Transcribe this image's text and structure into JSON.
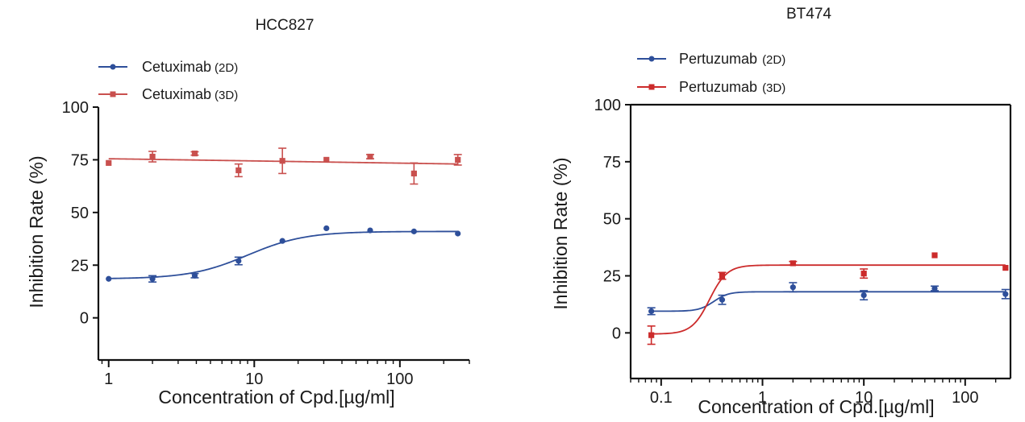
{
  "chart_data": [
    {
      "type": "scatter",
      "title": "HCC827",
      "xlabel": "Concentration of Cpd.[µg/ml]",
      "ylabel": "Inhibition Rate (%)",
      "x_scale": "log",
      "xlim": [
        0.85,
        300
      ],
      "ylim": [
        -20,
        100
      ],
      "x_ticks": [
        1,
        10,
        100
      ],
      "x_tick_labels": [
        "1",
        "10",
        "100"
      ],
      "y_ticks": [
        0,
        25,
        50,
        75,
        100
      ],
      "y_tick_labels": [
        "0",
        "25",
        "50",
        "75",
        "100"
      ],
      "grid": false,
      "legend_position": "top-left, above plot",
      "series": [
        {
          "name": "Cetuximab",
          "name_suffix": "(2D)",
          "color": "#2e4f9a",
          "marker": "circle",
          "x": [
            1,
            2,
            3.9,
            7.8,
            15.6,
            31.3,
            62.5,
            125,
            250
          ],
          "y": [
            18.5,
            18.5,
            20,
            27,
            36.5,
            42.5,
            41.5,
            41,
            40
          ],
          "err": [
            0.5,
            1.5,
            1,
            1.8,
            0.5,
            0.5,
            0.5,
            0.5,
            0.5
          ],
          "fit": {
            "bottom": 18.5,
            "top": 41,
            "ec50": 9,
            "hill": 2.2
          }
        },
        {
          "name": "Cetuximab",
          "name_suffix": "(3D)",
          "color": "#c9504e",
          "marker": "square",
          "x": [
            1,
            2,
            3.9,
            7.8,
            15.6,
            31.3,
            62.5,
            125,
            250
          ],
          "y": [
            73.5,
            76.5,
            78,
            70,
            74.5,
            75,
            76.5,
            68.5,
            75
          ],
          "err": [
            0.5,
            2.5,
            0.8,
            3,
            6,
            0.5,
            1,
            5,
            2.5
          ],
          "fit": {
            "linear": [
              75.5,
              73
            ]
          }
        }
      ]
    },
    {
      "type": "scatter",
      "title": "BT474",
      "xlabel": "Concentration of Cpd.[µg/ml]",
      "ylabel": "Inhibition Rate (%)",
      "x_scale": "log",
      "xlim": [
        0.05,
        280
      ],
      "ylim": [
        -20,
        100
      ],
      "x_ticks": [
        0.1,
        1,
        10,
        100
      ],
      "x_tick_labels": [
        "0.1",
        "1",
        "10",
        "100"
      ],
      "y_ticks": [
        0,
        25,
        50,
        75,
        100
      ],
      "y_tick_labels": [
        "0",
        "25",
        "50",
        "75",
        "100"
      ],
      "grid": false,
      "legend_position": "top-left, above plot",
      "series": [
        {
          "name": "Pertuzumab",
          "name_suffix": "(2D)",
          "color": "#2e4f9a",
          "marker": "circle",
          "x": [
            0.08,
            0.4,
            2,
            10,
            50,
            250
          ],
          "y": [
            9.5,
            14.5,
            20,
            16.5,
            19.5,
            17
          ],
          "err": [
            1.5,
            2,
            2,
            2,
            1,
            2
          ],
          "fit": {
            "bottom": 9.5,
            "top": 18,
            "ec50": 0.33,
            "hill": 6
          }
        },
        {
          "name": "Pertuzumab",
          "name_suffix": "(3D)",
          "color": "#cc2b2b",
          "marker": "square",
          "x": [
            0.08,
            0.4,
            2,
            10,
            50,
            250
          ],
          "y": [
            -1,
            25,
            30.5,
            26,
            34,
            28.5
          ],
          "err": [
            4,
            1.5,
            0.8,
            2,
            0.5,
            0.5
          ],
          "fit": {
            "bottom": -0.5,
            "top": 29.7,
            "ec50": 0.3,
            "hill": 5
          }
        }
      ]
    }
  ]
}
